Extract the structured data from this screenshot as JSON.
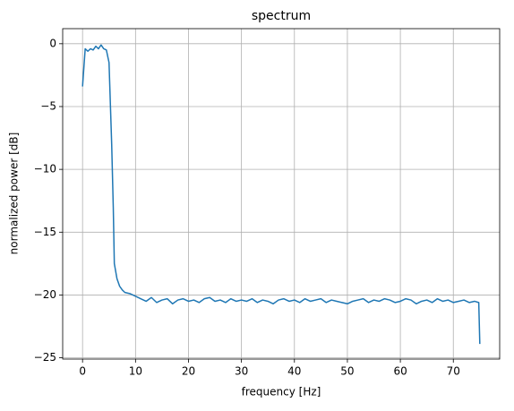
{
  "chart_data": {
    "type": "line",
    "title": "spectrum",
    "x_label": "frequency [Hz]",
    "y_label": "normalized power [dB]",
    "x": [
      0,
      0.5,
      1,
      1.5,
      2,
      2.5,
      3,
      3.5,
      4,
      4.5,
      5,
      5.5,
      5.8,
      6,
      6.5,
      7,
      7.5,
      8,
      9,
      10,
      11,
      12,
      13,
      14,
      15,
      16,
      17,
      18,
      19,
      20,
      21,
      22,
      23,
      24,
      25,
      26,
      27,
      28,
      29,
      30,
      31,
      32,
      33,
      34,
      35,
      36,
      37,
      38,
      39,
      40,
      41,
      42,
      43,
      44,
      45,
      46,
      47,
      48,
      49,
      50,
      51,
      52,
      53,
      54,
      55,
      56,
      57,
      58,
      59,
      60,
      61,
      62,
      63,
      64,
      65,
      66,
      67,
      68,
      69,
      70,
      71,
      72,
      73,
      74,
      74.8,
      75
    ],
    "values": [
      -3.4,
      -0.4,
      -0.6,
      -0.4,
      -0.5,
      -0.2,
      -0.4,
      -0.1,
      -0.4,
      -0.5,
      -1.5,
      -8,
      -13,
      -17.5,
      -18.7,
      -19.3,
      -19.6,
      -19.8,
      -19.9,
      -20.1,
      -20.3,
      -20.5,
      -20.2,
      -20.6,
      -20.4,
      -20.3,
      -20.7,
      -20.4,
      -20.3,
      -20.5,
      -20.4,
      -20.6,
      -20.3,
      -20.2,
      -20.5,
      -20.4,
      -20.6,
      -20.3,
      -20.5,
      -20.4,
      -20.5,
      -20.3,
      -20.6,
      -20.4,
      -20.5,
      -20.7,
      -20.4,
      -20.3,
      -20.5,
      -20.4,
      -20.6,
      -20.3,
      -20.5,
      -20.4,
      -20.3,
      -20.6,
      -20.4,
      -20.5,
      -20.6,
      -20.7,
      -20.5,
      -20.4,
      -20.3,
      -20.6,
      -20.4,
      -20.5,
      -20.3,
      -20.4,
      -20.6,
      -20.5,
      -20.3,
      -20.4,
      -20.7,
      -20.5,
      -20.4,
      -20.6,
      -20.3,
      -20.5,
      -20.4,
      -20.6,
      -20.5,
      -20.4,
      -20.6,
      -20.5,
      -20.6,
      -23.9
    ],
    "color": "#1f77b4",
    "grid": true,
    "xlim": [
      -3.75,
      78.75
    ],
    "ylim": [
      -25.1,
      1.2
    ],
    "xticks": [
      0,
      10,
      20,
      30,
      40,
      50,
      60,
      70
    ],
    "yticks": [
      0,
      {
        "value": -5,
        "label": "−5"
      },
      {
        "value": -10,
        "label": "−10"
      },
      {
        "value": -15,
        "label": "−15"
      },
      {
        "value": -20,
        "label": "−20"
      },
      {
        "value": -25,
        "label": "−25"
      }
    ]
  }
}
